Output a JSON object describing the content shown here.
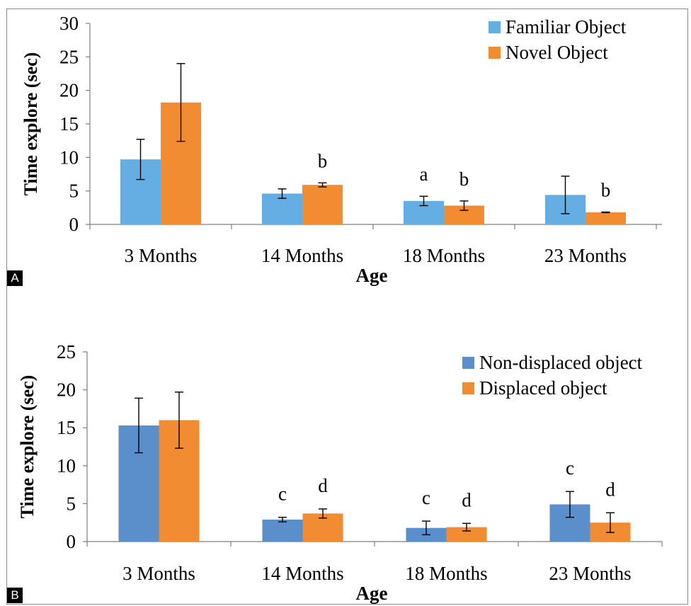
{
  "chart_data": [
    {
      "panel": "A",
      "type": "bar",
      "title": "",
      "xlabel": "Age",
      "ylabel": "Time explore (sec)",
      "ylim": [
        0,
        30
      ],
      "yticks": [
        0,
        5,
        10,
        15,
        20,
        25,
        30
      ],
      "categories": [
        "3 Months",
        "14 Months",
        "18 Months",
        "23 Months"
      ],
      "legend_position": "top-right",
      "grid": false,
      "series": [
        {
          "name": "Familiar Object",
          "color": "#64aee3",
          "values": [
            9.7,
            4.6,
            3.5,
            4.4
          ],
          "error": [
            3.0,
            0.7,
            0.7,
            2.8
          ],
          "annotations": [
            "",
            "",
            "a",
            ""
          ]
        },
        {
          "name": "Novel Object",
          "color": "#f28c33",
          "values": [
            18.2,
            5.9,
            2.8,
            1.8
          ],
          "error": [
            5.8,
            0.3,
            0.7,
            0.05
          ],
          "annotations": [
            "",
            "b",
            "b",
            "b"
          ]
        }
      ]
    },
    {
      "panel": "B",
      "type": "bar",
      "title": "",
      "xlabel": "Age",
      "ylabel": "Time  explore (sec)",
      "ylim": [
        0,
        25
      ],
      "yticks": [
        0,
        5,
        10,
        15,
        20,
        25
      ],
      "categories": [
        "3 Months",
        "14 Months",
        "18 Months",
        "23 Months"
      ],
      "legend_position": "top-right",
      "grid": false,
      "series": [
        {
          "name": "Non-displaced object",
          "color": "#5b8fcb",
          "values": [
            15.3,
            2.9,
            1.8,
            4.9
          ],
          "error": [
            3.6,
            0.3,
            0.9,
            1.7
          ],
          "annotations": [
            "",
            "c",
            "c",
            "c"
          ]
        },
        {
          "name": "Displaced object",
          "color": "#f28c33",
          "values": [
            16.0,
            3.7,
            1.9,
            2.5
          ],
          "error": [
            3.7,
            0.6,
            0.5,
            1.3
          ],
          "annotations": [
            "",
            "d",
            "d",
            "d"
          ]
        }
      ]
    }
  ],
  "panel_labels": [
    "A",
    "B"
  ]
}
